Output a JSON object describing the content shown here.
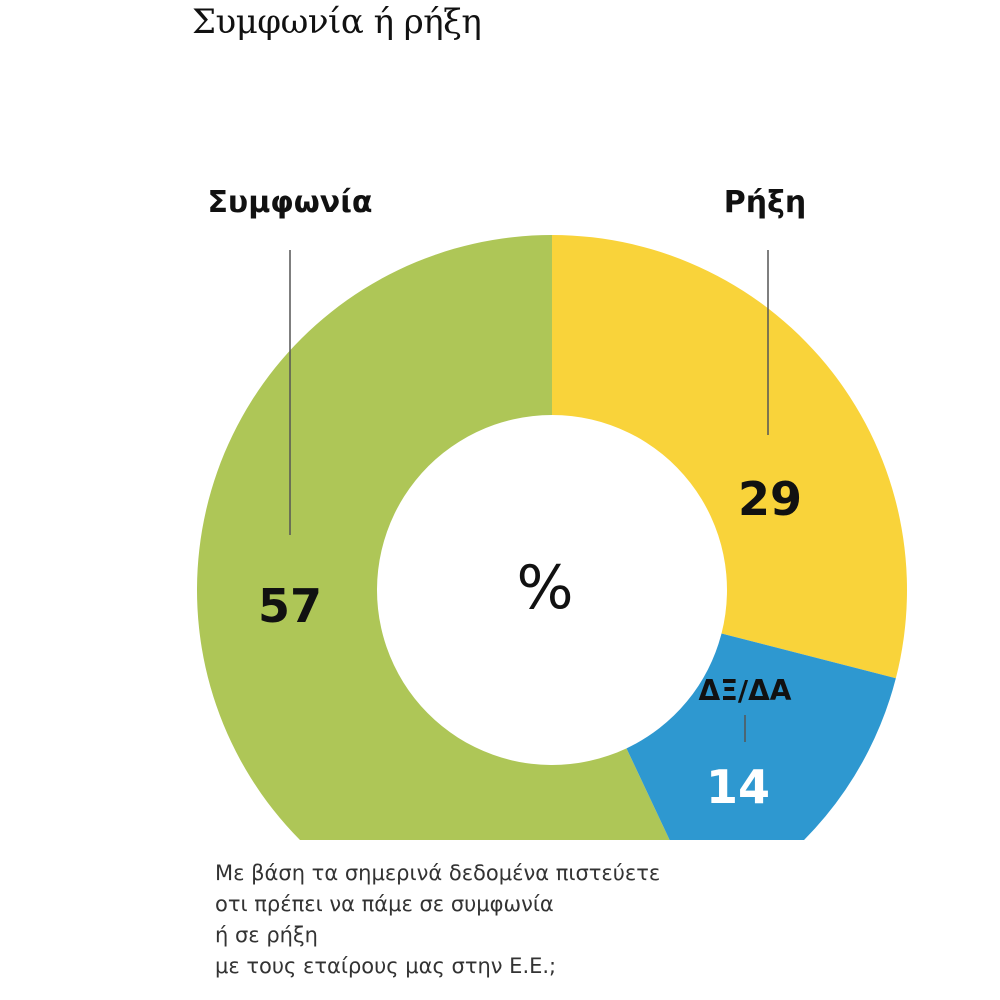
{
  "chart_data": {
    "type": "pie",
    "title": "Συμφωνία ή ρήξη",
    "center_label": "%",
    "slices": [
      {
        "name": "Συμφωνία",
        "value": 57,
        "color": "#aec657",
        "label_color": "#111111"
      },
      {
        "name": "Ρήξη",
        "value": 29,
        "color": "#f9d33a",
        "label_color": "#111111"
      },
      {
        "name": "ΔΞ/ΔΑ",
        "value": 14,
        "color": "#2e98d0",
        "label_color": "#ffffff"
      }
    ],
    "question": [
      "Με βάση τα σημερινά δεδομένα πιστεύετε",
      "οτι πρέπει να πάμε σε συμφωνία",
      "ή σε ρήξη",
      "με τους εταίρους μας στην Ε.Ε.;"
    ]
  }
}
